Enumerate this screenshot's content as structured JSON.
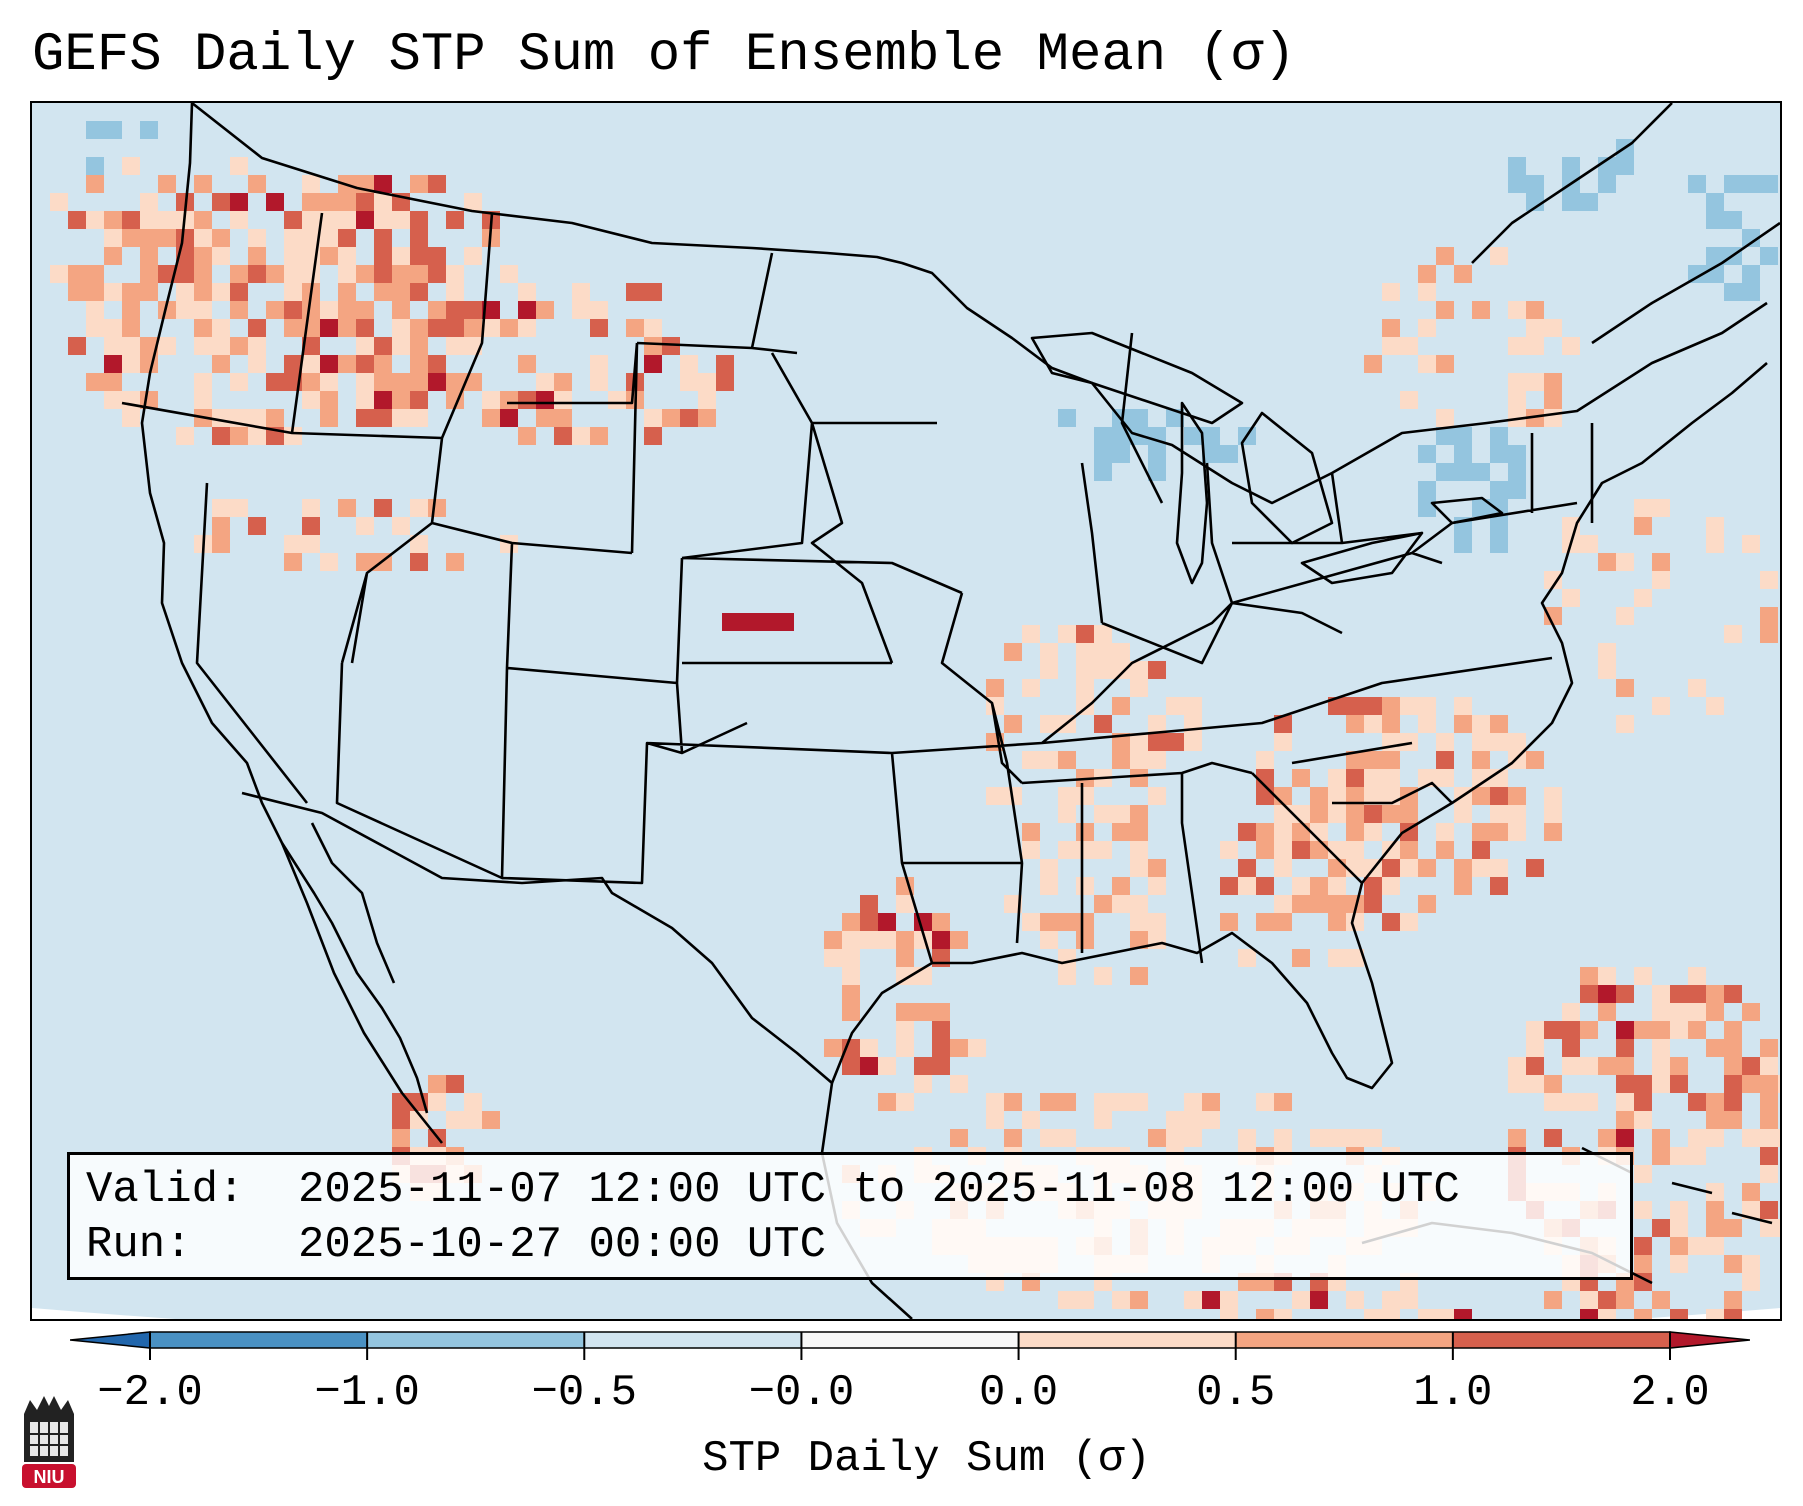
{
  "title": "GEFS Daily STP Sum of Ensemble Mean (σ)",
  "info_box": {
    "valid_label": "Valid:",
    "valid_value": "2025-11-07 12:00 UTC to 2025-11-08 12:00 UTC",
    "run_label": "Run:",
    "run_value": "2025-10-27 00:00 UTC"
  },
  "colorbar": {
    "label": "STP Daily Sum (σ)",
    "ticks": [
      "−2.0",
      "−1.0",
      "−0.5",
      "−0.0",
      "0.0",
      "0.5",
      "1.0",
      "2.0"
    ],
    "bins": [
      {
        "range": "-2.0 to -1.0",
        "color": "#4a91c3"
      },
      {
        "range": "-1.0 to -0.5",
        "color": "#94c5df"
      },
      {
        "range": "-0.5 to -0.0",
        "color": "#d2e5f0"
      },
      {
        "range": "-0.0 to 0.0",
        "color": "#f7f7f7"
      },
      {
        "range": "0.0 to 0.5",
        "color": "#fcdbc7"
      },
      {
        "range": "0.5 to 1.0",
        "color": "#f4a582"
      },
      {
        "range": "1.0 to 2.0",
        "color": "#d6604d"
      }
    ],
    "extend_low_color": "#2166ac",
    "extend_high_color": "#b2182b"
  },
  "logo": {
    "text": "NIU"
  },
  "colors": {
    "background_field": "#d2e5f0",
    "outside_projection": "#ffffff",
    "lt_positive": "#fcdbc7",
    "md_positive": "#f4a582",
    "hi_positive": "#d6604d",
    "extreme_positive": "#b2182b",
    "lt_negative": "#94c5df"
  },
  "regions": [
    {
      "name": "Pacific Northwest / Northern Rockies",
      "level": "0.5 to 2.0"
    },
    {
      "name": "Central Plains (Kansas)",
      "level": "above 2.0"
    },
    {
      "name": "Missouri / Arkansas / Mississippi Valley",
      "level": "0.0 to 1.0"
    },
    {
      "name": "Texas",
      "level": "0.5 to 2.0"
    },
    {
      "name": "Carolinas / Mid-Atlantic",
      "level": "0.0 to 1.0"
    },
    {
      "name": "Great Lakes / Northeast",
      "level": "-1.0 to -0.5"
    },
    {
      "name": "Gulf of Mexico",
      "level": "0.0 to 0.5"
    },
    {
      "name": "Western Atlantic / Caribbean",
      "level": "0.5 to 2.0"
    }
  ]
}
